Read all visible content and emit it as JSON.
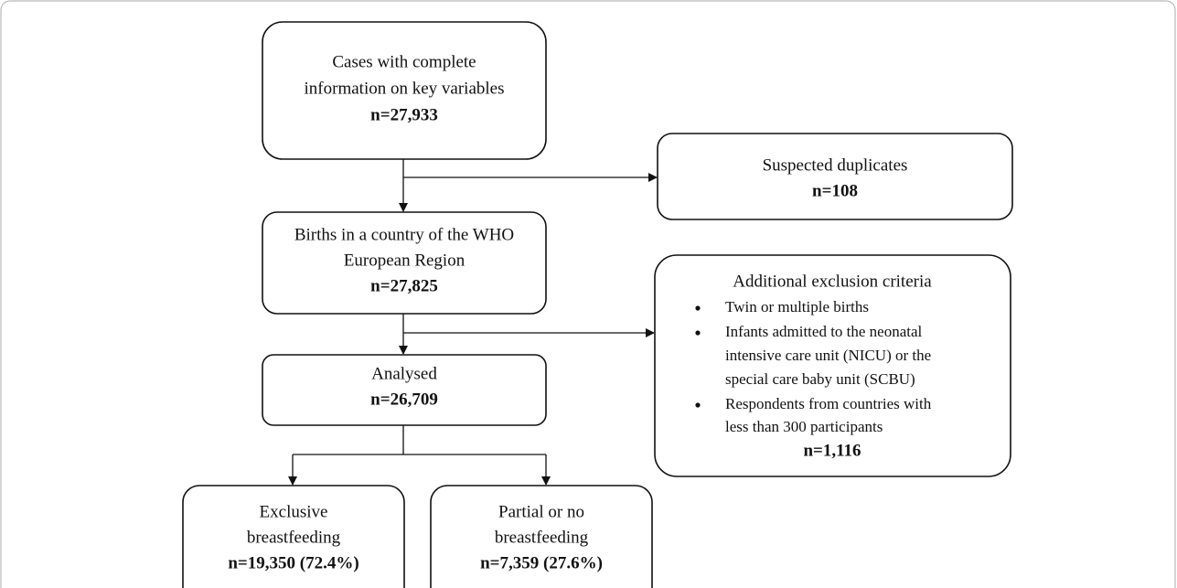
{
  "nodes": [
    {
      "lines": [
        "Cases with complete",
        "information on key variables"
      ],
      "count": "n=27,933"
    },
    {
      "lines": [
        "Suspected duplicates"
      ],
      "count": "n=108"
    },
    {
      "lines": [
        "Births in a country of the WHO",
        "European Region"
      ],
      "count": "n=27,825"
    },
    {
      "title": "Additional exclusion criteria",
      "items": [
        [
          "Twin or multiple births"
        ],
        [
          "Infants admitted to the neonatal",
          "intensive care unit (NICU) or the",
          "special care baby unit (SCBU)"
        ],
        [
          "Respondents from countries with",
          "less than 300 participants"
        ]
      ],
      "count": "n=1,116"
    },
    {
      "lines": [
        "Analysed"
      ],
      "count": "n=26,709"
    },
    {
      "lines": [
        "Exclusive",
        "breastfeeding"
      ],
      "count": "n=19,350 (72.4%)"
    },
    {
      "lines": [
        "Partial or no",
        "breastfeeding"
      ],
      "count": "n=7,359 (27.6%)"
    }
  ]
}
